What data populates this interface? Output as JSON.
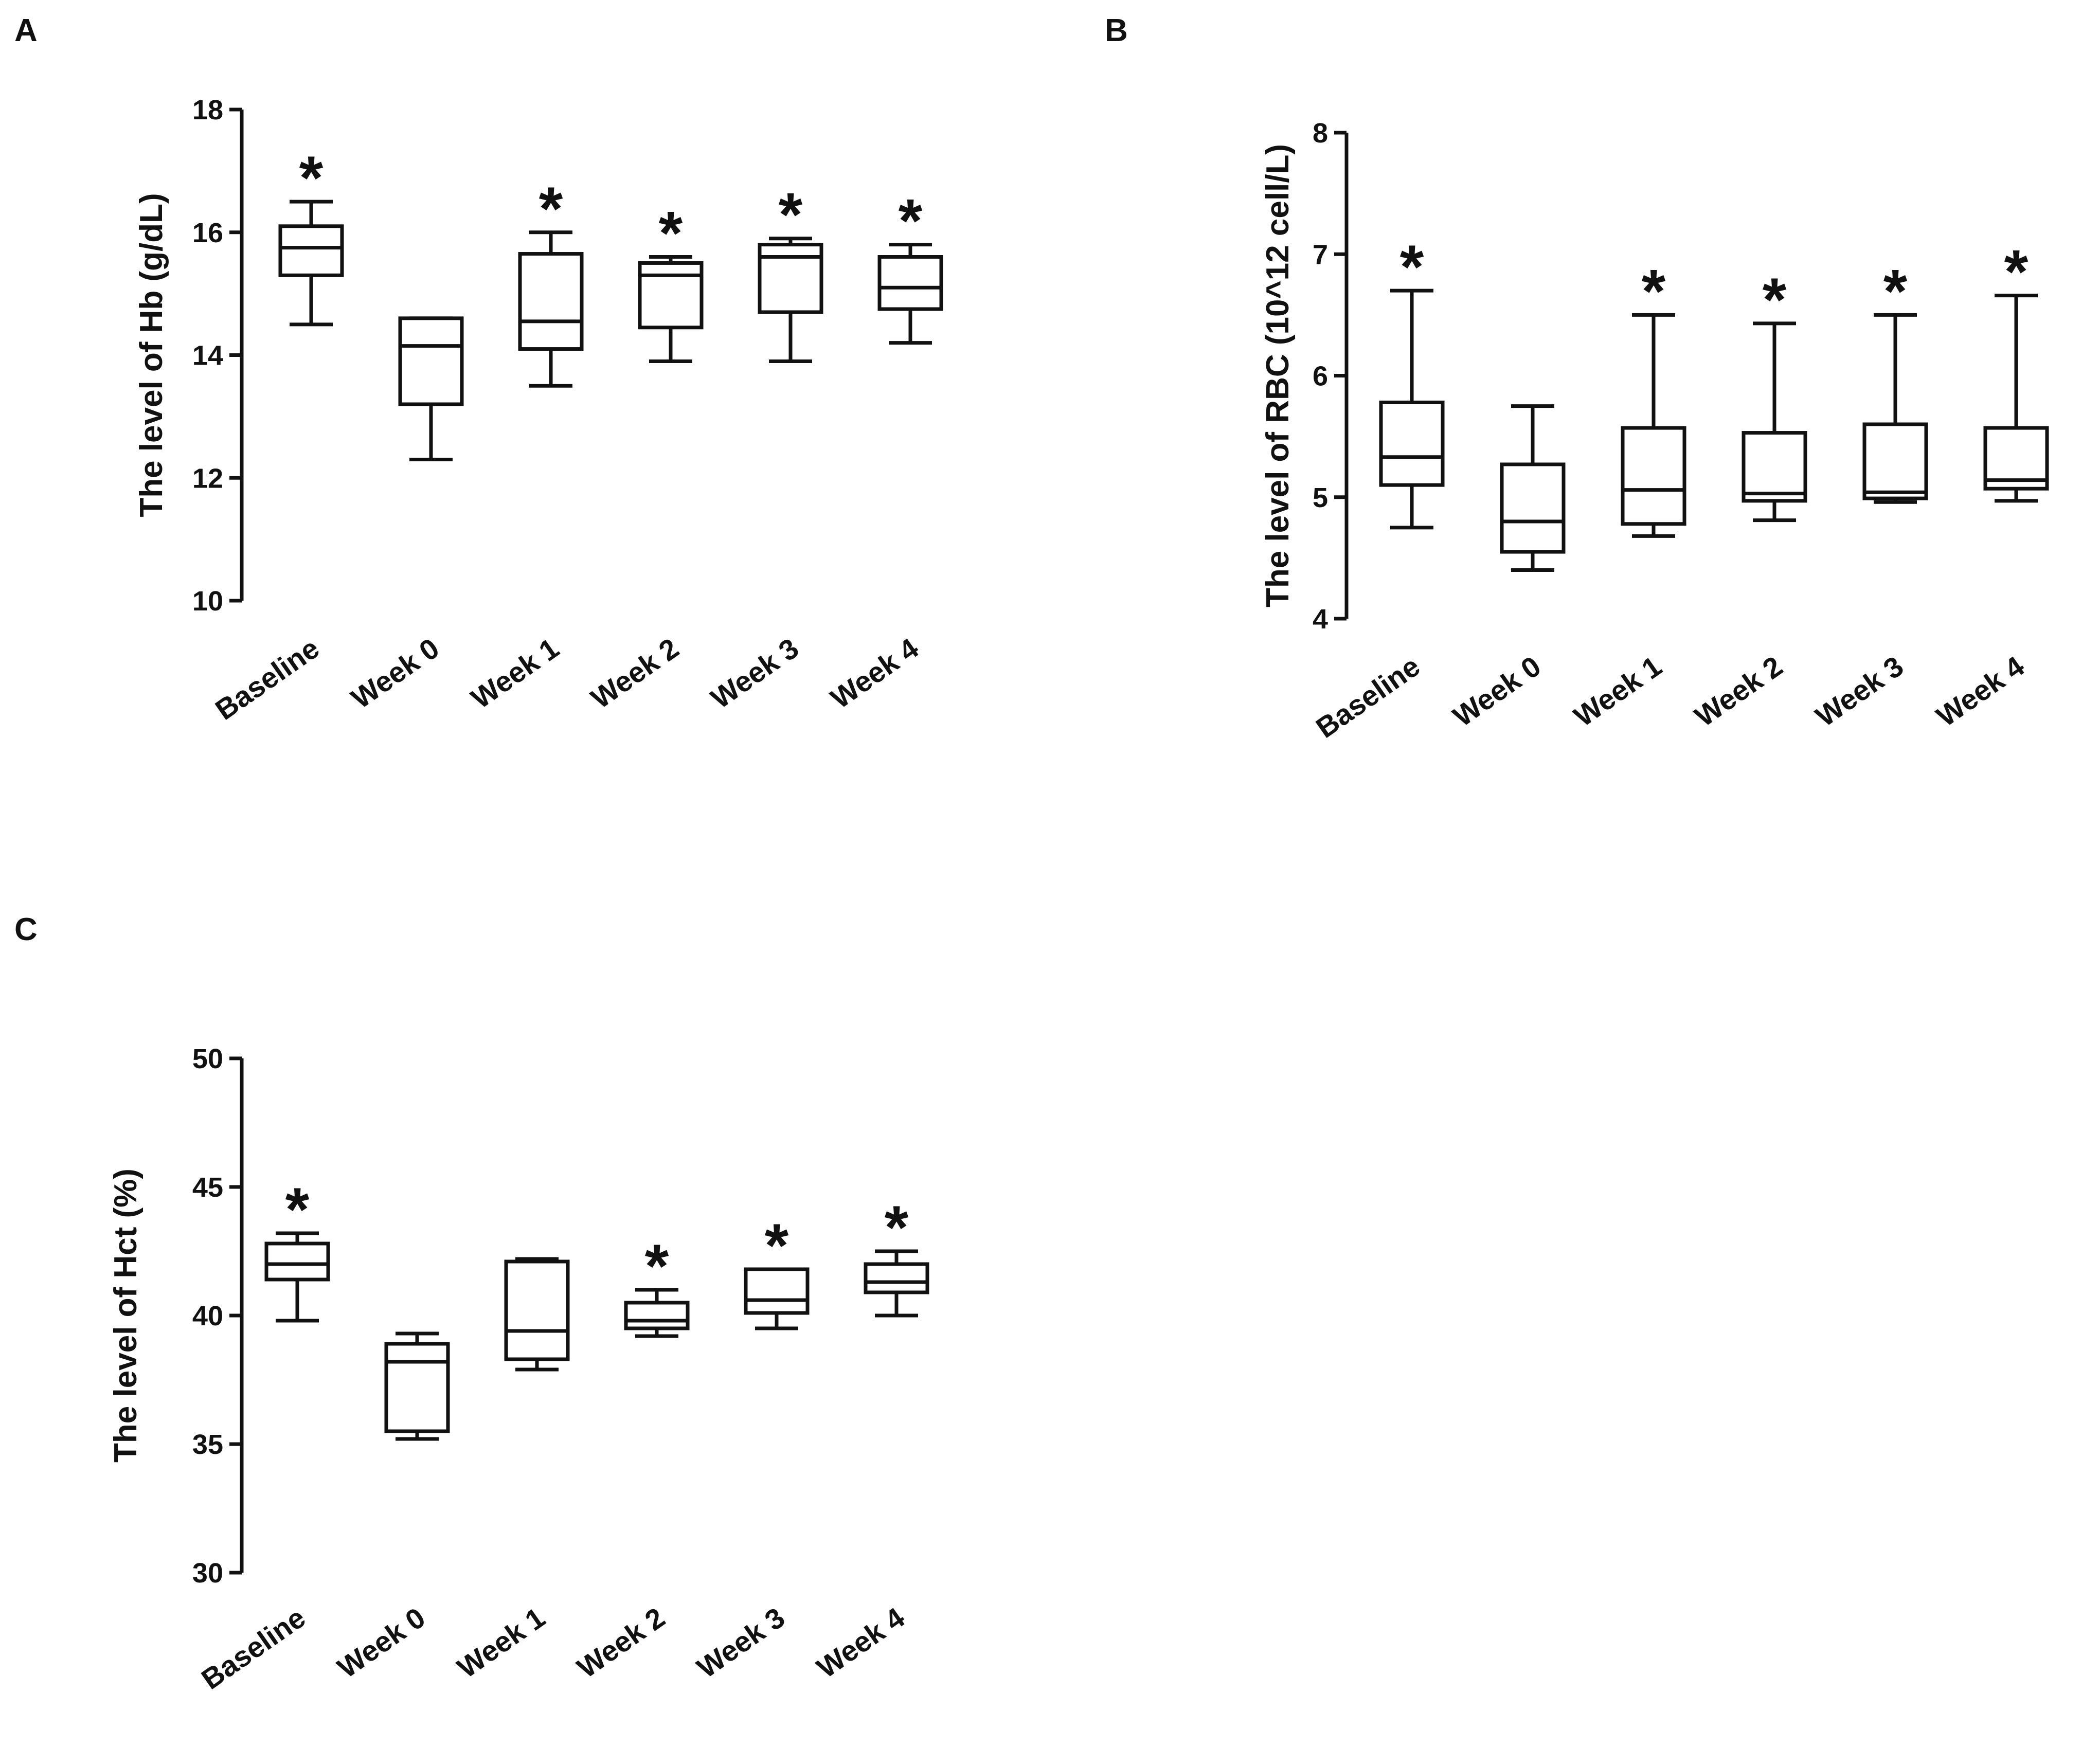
{
  "colors": {
    "ink": "#111111",
    "background": "#ffffff"
  },
  "chart_data": [
    {
      "panel": "A",
      "type": "box",
      "ylabel": "The level of  Hb (g/dL)",
      "ylim": [
        10,
        18
      ],
      "yticks": [
        10,
        12,
        14,
        16,
        18
      ],
      "categories": [
        "Baseline",
        "Week 0",
        "Week 1",
        "Week 2",
        "Week 3",
        "Week 4"
      ],
      "boxes": [
        {
          "min": 14.5,
          "q1": 15.3,
          "median": 15.75,
          "q3": 16.1,
          "max": 16.5
        },
        {
          "min": 12.3,
          "q1": 13.2,
          "median": 14.15,
          "q3": 14.6,
          "max": 14.6
        },
        {
          "min": 13.5,
          "q1": 14.1,
          "median": 14.55,
          "q3": 15.65,
          "max": 16.0
        },
        {
          "min": 13.9,
          "q1": 14.45,
          "median": 15.3,
          "q3": 15.5,
          "max": 15.6
        },
        {
          "min": 13.9,
          "q1": 14.7,
          "median": 15.6,
          "q3": 15.8,
          "max": 15.9
        },
        {
          "min": 14.2,
          "q1": 14.75,
          "median": 15.1,
          "q3": 15.6,
          "max": 15.8
        }
      ],
      "significance": [
        "*",
        "",
        "*",
        "*",
        "*",
        "*"
      ]
    },
    {
      "panel": "B",
      "type": "box",
      "ylabel": "The level of RBC (10^12 cell/L)",
      "ylim": [
        4,
        8
      ],
      "yticks": [
        4,
        5,
        6,
        7,
        8
      ],
      "categories": [
        "Baseline",
        "Week 0",
        "Week 1",
        "Week 2",
        "Week 3",
        "Week 4"
      ],
      "boxes": [
        {
          "min": 4.75,
          "q1": 5.1,
          "median": 5.33,
          "q3": 5.78,
          "max": 6.7
        },
        {
          "min": 4.4,
          "q1": 4.55,
          "median": 4.8,
          "q3": 5.27,
          "max": 5.75
        },
        {
          "min": 4.68,
          "q1": 4.78,
          "median": 5.06,
          "q3": 5.57,
          "max": 6.5
        },
        {
          "min": 4.81,
          "q1": 4.97,
          "median": 5.03,
          "q3": 5.53,
          "max": 6.43
        },
        {
          "min": 4.96,
          "q1": 4.99,
          "median": 5.04,
          "q3": 5.6,
          "max": 6.5
        },
        {
          "min": 4.97,
          "q1": 5.07,
          "median": 5.14,
          "q3": 5.57,
          "max": 6.66
        }
      ],
      "significance": [
        "*",
        "",
        "*",
        "*",
        "*",
        "*"
      ]
    },
    {
      "panel": "C",
      "type": "box",
      "ylabel": "The level of Hct (%)",
      "ylim": [
        30,
        50
      ],
      "yticks": [
        30,
        35,
        40,
        45,
        50
      ],
      "categories": [
        "Baseline",
        "Week 0",
        "Week 1",
        "Week 2",
        "Week 3",
        "Week 4"
      ],
      "boxes": [
        {
          "min": 39.8,
          "q1": 41.4,
          "median": 42.0,
          "q3": 42.8,
          "max": 43.2
        },
        {
          "min": 35.2,
          "q1": 35.5,
          "median": 38.2,
          "q3": 38.9,
          "max": 39.3
        },
        {
          "min": 37.9,
          "q1": 38.3,
          "median": 39.4,
          "q3": 42.1,
          "max": 42.2
        },
        {
          "min": 39.2,
          "q1": 39.5,
          "median": 39.8,
          "q3": 40.5,
          "max": 41.0
        },
        {
          "min": 39.5,
          "q1": 40.1,
          "median": 40.6,
          "q3": 41.8,
          "max": 41.8
        },
        {
          "min": 40.0,
          "q1": 40.9,
          "median": 41.3,
          "q3": 42.0,
          "max": 42.5
        }
      ],
      "significance": [
        "*",
        "",
        "",
        "*",
        "*",
        "*"
      ]
    }
  ]
}
